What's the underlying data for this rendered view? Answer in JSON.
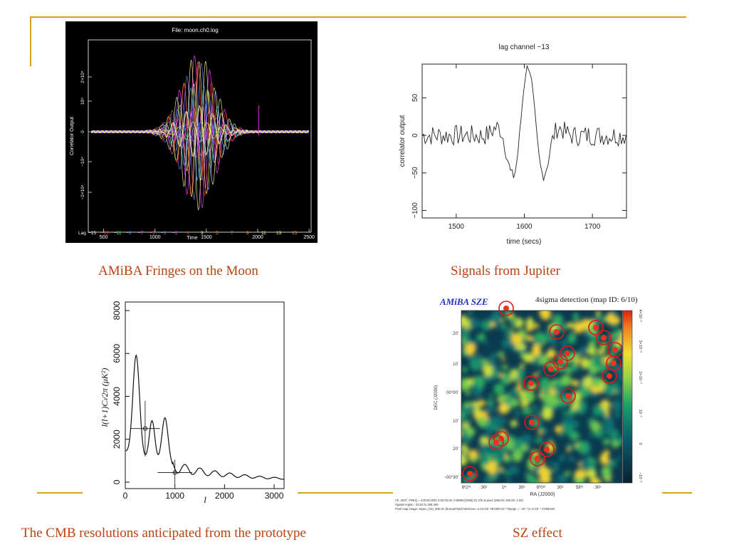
{
  "slide": {
    "accent": "#d9a21a",
    "caption_color": "#c0400e"
  },
  "moon": {
    "caption": "AMiBA Fringes on the Moon",
    "title": "File: moon.ch0.log",
    "ylabel": "Correlator Output",
    "xlabel": "Time",
    "yticks": [
      "2×10⁴",
      "10⁴",
      "0",
      "−10⁴",
      "−2×10⁴"
    ],
    "xticks": [
      "500",
      "1000",
      "1500",
      "2000",
      "2500"
    ],
    "legend_title": "Lag",
    "legend": [
      {
        "label": "−15",
        "color": "#ffffff"
      },
      {
        "label": "−13",
        "color": "#ff3030"
      },
      {
        "label": "−11",
        "color": "#30ff30"
      },
      {
        "label": "−9",
        "color": "#3a8cff"
      },
      {
        "label": "−7",
        "color": "#ff40ff"
      },
      {
        "label": "−5",
        "color": "#ff3030"
      },
      {
        "label": "−3",
        "color": "#3a8cff"
      },
      {
        "label": "−1",
        "color": "#ff40ff"
      },
      {
        "label": "1",
        "color": "#ff3030"
      },
      {
        "label": "3",
        "color": "#ffff40"
      },
      {
        "label": "5",
        "color": "#ff9020"
      },
      {
        "label": "7",
        "color": "#40a0ff"
      },
      {
        "label": "9",
        "color": "#ff9020"
      },
      {
        "label": "11",
        "color": "#ffff80"
      },
      {
        "label": "13",
        "color": "#ffff40"
      },
      {
        "label": "15",
        "color": "#ff9020"
      }
    ],
    "palette": [
      "#ff40ff",
      "#8080ff",
      "#ffff60",
      "#ffffa0",
      "#ff3030",
      "#40c0ff"
    ]
  },
  "jupiter": {
    "caption": "Signals from Jupiter",
    "title": "lag channel   −13",
    "xlabel": "time (secs)",
    "ylabel": "correlator output",
    "xticks": [
      "1500",
      "1600",
      "1700"
    ],
    "yticks": [
      "50",
      "0",
      "−50",
      "−100"
    ]
  },
  "cmb": {
    "caption": "The CMB resolutions anticipated from the prototype",
    "ylabel": "l(l+1)Cₗ/2π  (μK²)",
    "xlabel": "l",
    "yticks": [
      "8000",
      "6000",
      "4000",
      "2000",
      "0"
    ],
    "xticks": [
      "0",
      "1000",
      "2000",
      "3000"
    ]
  },
  "sz": {
    "caption": "SZ effect",
    "brand": "AMiBA SZE",
    "title": "4sigma detection   (map ID: 6/10)",
    "yaxis": "DEC (J2000)",
    "xaxis": "RA (J2000)",
    "dec_ticks": [
      "20'",
      "10'",
      "00°00'",
      "10'",
      "20'",
      "−00°30'"
    ],
    "ra_ticks": [
      "6ʰ2ᵐ",
      "30ˢ",
      "1ᵐ",
      "30ˢ",
      "6ʰ0ᵐ",
      "30ˢ",
      "59ᵐ",
      "30ˢ"
    ],
    "colorbar_ticks": [
      "4×10⁻³",
      "3×10⁻³",
      "2×10⁻³",
      "10⁻³",
      "0",
      "−10⁻³"
    ],
    "footer": [
      "Ch. 2007, FREQ = 4:00:00.000, 0:00:00.00, 8.99901(h360):01 Gfs at pixel (256.00, 256.00, 1.00)",
      "Spatial region : 53.53 to 458.460",
      "Pixel map image: sspec_010_006.cln  (boxcarField)  Min/max=-4.44×10⁻³/8.050×10⁻³   Range = −10⁻³ to 4×10⁻³ JY/BEAM"
    ]
  }
}
